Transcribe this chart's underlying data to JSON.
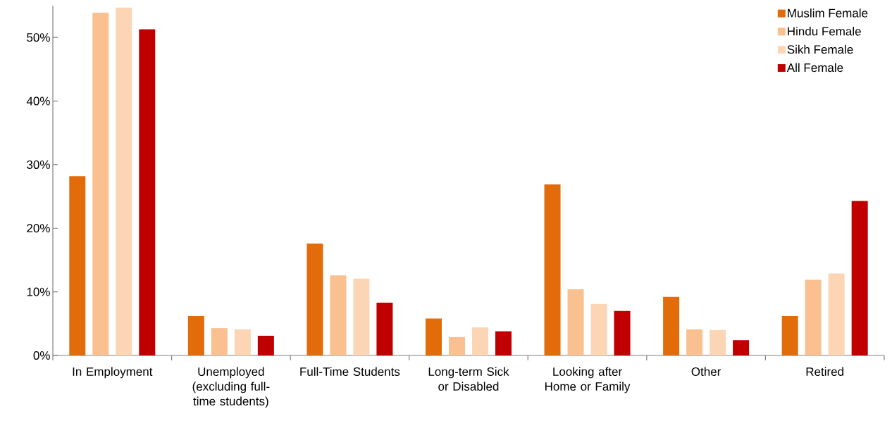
{
  "chart_data": {
    "type": "bar",
    "categories": [
      "In Employment",
      "Unemployed (excluding full-time students)",
      "Full-Time Students",
      "Long-term Sick or Disabled",
      "Looking after Home or Family",
      "Other",
      "Retired"
    ],
    "series": [
      {
        "name": "Muslim Female",
        "color": "#e36c0a",
        "values": [
          28.2,
          6.2,
          17.6,
          5.8,
          26.9,
          9.2,
          6.2
        ]
      },
      {
        "name": "Hindu Female",
        "color": "#fac090",
        "values": [
          53.9,
          4.3,
          12.6,
          2.9,
          10.4,
          4.1,
          11.9
        ]
      },
      {
        "name": "Sikh Female",
        "color": "#fcd5b5",
        "values": [
          54.7,
          4.1,
          12.1,
          4.4,
          8.1,
          4.0,
          12.9
        ]
      },
      {
        "name": "All Female",
        "color": "#c00000",
        "values": [
          51.3,
          3.1,
          8.3,
          3.8,
          7.0,
          2.4,
          24.3
        ]
      }
    ],
    "ylim": [
      0,
      55
    ],
    "yticks": [
      {
        "value": 0,
        "label": "0%"
      },
      {
        "value": 10,
        "label": "10%"
      },
      {
        "value": 20,
        "label": "20%"
      },
      {
        "value": 30,
        "label": "30%"
      },
      {
        "value": 40,
        "label": "40%"
      },
      {
        "value": 50,
        "label": "50%"
      }
    ],
    "legend": "top right",
    "grid": false
  }
}
